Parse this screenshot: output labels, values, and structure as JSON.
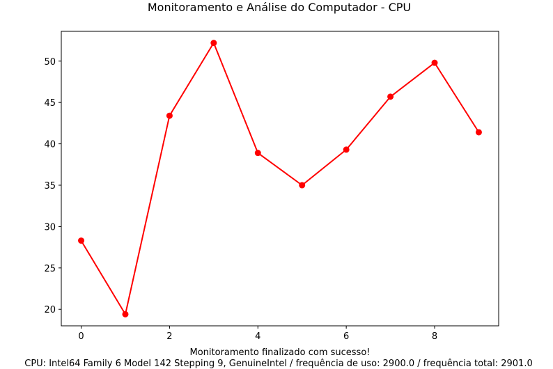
{
  "chart_data": {
    "type": "line",
    "title": "Monitoramento e Análise do Computador - CPU",
    "xlabel": "Monitoramento finalizado com sucesso!",
    "ylabel": "",
    "caption": "CPU: Intel64 Family 6 Model 142 Stepping 9, GenuineIntel / frequência de uso: 2900.0 / frequência total: 2901.0",
    "x": [
      0,
      1,
      2,
      3,
      4,
      5,
      6,
      7,
      8,
      9
    ],
    "values": [
      28.3,
      19.4,
      43.4,
      52.2,
      38.9,
      35.0,
      39.3,
      45.7,
      49.8,
      41.4
    ],
    "xlim": [
      -0.45,
      9.45
    ],
    "ylim": [
      18.0,
      53.6
    ],
    "xticks": [
      0,
      2,
      4,
      6,
      8
    ],
    "yticks": [
      20,
      25,
      30,
      35,
      40,
      45,
      50
    ],
    "color": "#ff0000",
    "grid": false
  }
}
